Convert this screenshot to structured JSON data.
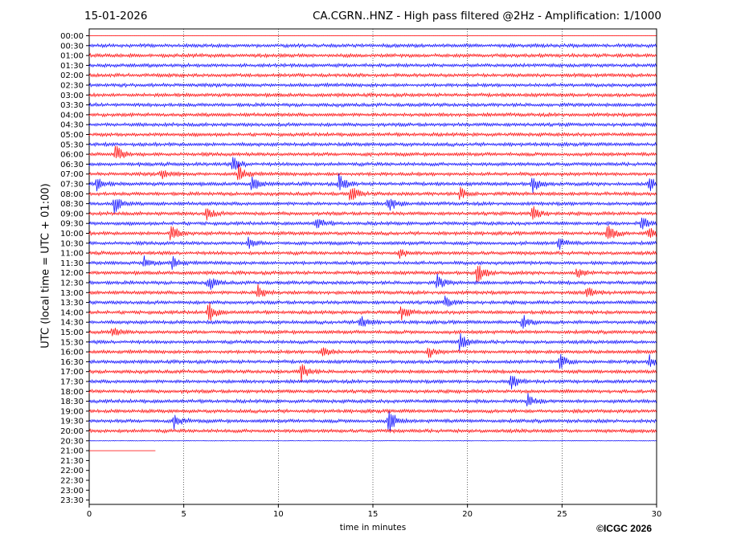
{
  "header": {
    "date": "15-01-2026",
    "title": "CA.CGRN..HNZ - High pass filtered @2Hz - Amplification: 1/1000"
  },
  "credit": "©ICGC 2026",
  "chart_data": {
    "type": "line",
    "title": "CA.CGRN..HNZ - High pass filtered @2Hz - Amplification: 1/1000",
    "xlabel": "time in minutes",
    "ylabel": "UTC (local time = UTC + 01:00)",
    "xlim": [
      0,
      30
    ],
    "xticks": [
      "0",
      "5",
      "10",
      "15",
      "20",
      "25",
      "30"
    ],
    "x_grid": "dotted vertical lines at 5, 10, 15, 20, 25",
    "rows": [
      "00:00",
      "00:30",
      "01:00",
      "01:30",
      "02:00",
      "02:30",
      "03:00",
      "03:30",
      "04:00",
      "04:30",
      "05:00",
      "05:30",
      "06:00",
      "06:30",
      "07:00",
      "07:30",
      "08:00",
      "08:30",
      "09:00",
      "09:30",
      "10:00",
      "10:30",
      "11:00",
      "11:30",
      "12:00",
      "12:30",
      "13:00",
      "13:30",
      "14:00",
      "14:30",
      "15:00",
      "15:30",
      "16:00",
      "16:30",
      "17:00",
      "17:30",
      "18:00",
      "18:30",
      "19:00",
      "19:30",
      "20:00",
      "20:30",
      "21:00",
      "21:30",
      "22:00",
      "22:30",
      "23:00",
      "23:30"
    ],
    "trace_colors": [
      "#ff0000",
      "#0000ff"
    ],
    "color_pattern": "alternating per row, starting red at 00:00",
    "data_extent": "traces complete from 00:00 to 20:30; the 21:00 row runs from 0 to about 3.5 minutes",
    "last_row_minutes": 3.5,
    "seismic_events": [
      {
        "row": "06:00",
        "minute": 1.4,
        "amplitude": 0.7
      },
      {
        "row": "06:30",
        "minute": 7.6,
        "amplitude": 0.6
      },
      {
        "row": "07:00",
        "minute": 3.8,
        "amplitude": 0.4
      },
      {
        "row": "07:00",
        "minute": 7.9,
        "amplitude": 0.7
      },
      {
        "row": "07:30",
        "minute": 0.4,
        "amplitude": 0.5
      },
      {
        "row": "07:30",
        "minute": 8.6,
        "amplitude": 0.6
      },
      {
        "row": "07:30",
        "minute": 13.2,
        "amplitude": 0.8
      },
      {
        "row": "07:30",
        "minute": 23.4,
        "amplitude": 0.7
      },
      {
        "row": "07:30",
        "minute": 29.6,
        "amplitude": 0.6
      },
      {
        "row": "08:00",
        "minute": 13.8,
        "amplitude": 0.7
      },
      {
        "row": "08:00",
        "minute": 19.6,
        "amplitude": 0.5
      },
      {
        "row": "08:30",
        "minute": 1.3,
        "amplitude": 0.8
      },
      {
        "row": "08:30",
        "minute": 15.8,
        "amplitude": 0.7
      },
      {
        "row": "09:00",
        "minute": 6.2,
        "amplitude": 0.5
      },
      {
        "row": "09:00",
        "minute": 23.4,
        "amplitude": 0.8
      },
      {
        "row": "09:30",
        "minute": 12.0,
        "amplitude": 0.5
      },
      {
        "row": "09:30",
        "minute": 29.2,
        "amplitude": 0.5
      },
      {
        "row": "10:00",
        "minute": 4.3,
        "amplitude": 0.7
      },
      {
        "row": "10:00",
        "minute": 27.4,
        "amplitude": 0.8
      },
      {
        "row": "10:00",
        "minute": 29.6,
        "amplitude": 0.6
      },
      {
        "row": "10:30",
        "minute": 8.4,
        "amplitude": 0.4
      },
      {
        "row": "10:30",
        "minute": 24.8,
        "amplitude": 0.5
      },
      {
        "row": "11:00",
        "minute": 16.4,
        "amplitude": 0.4
      },
      {
        "row": "11:30",
        "minute": 2.9,
        "amplitude": 0.6
      },
      {
        "row": "11:30",
        "minute": 4.4,
        "amplitude": 0.5
      },
      {
        "row": "12:00",
        "minute": 20.5,
        "amplitude": 0.9
      },
      {
        "row": "12:00",
        "minute": 25.8,
        "amplitude": 0.4
      },
      {
        "row": "12:30",
        "minute": 6.3,
        "amplitude": 0.6
      },
      {
        "row": "12:30",
        "minute": 18.4,
        "amplitude": 0.6
      },
      {
        "row": "13:00",
        "minute": 8.9,
        "amplitude": 0.7
      },
      {
        "row": "13:00",
        "minute": 26.3,
        "amplitude": 0.5
      },
      {
        "row": "13:30",
        "minute": 18.8,
        "amplitude": 0.5
      },
      {
        "row": "14:00",
        "minute": 6.3,
        "amplitude": 0.8
      },
      {
        "row": "14:00",
        "minute": 16.5,
        "amplitude": 0.6
      },
      {
        "row": "14:30",
        "minute": 14.3,
        "amplitude": 0.7
      },
      {
        "row": "14:30",
        "minute": 22.9,
        "amplitude": 0.6
      },
      {
        "row": "15:00",
        "minute": 1.2,
        "amplitude": 0.4
      },
      {
        "row": "15:30",
        "minute": 19.6,
        "amplitude": 0.7
      },
      {
        "row": "16:00",
        "minute": 12.3,
        "amplitude": 0.6
      },
      {
        "row": "16:00",
        "minute": 17.9,
        "amplitude": 0.5
      },
      {
        "row": "16:30",
        "minute": 24.9,
        "amplitude": 0.6
      },
      {
        "row": "16:30",
        "minute": 29.6,
        "amplitude": 0.5
      },
      {
        "row": "17:00",
        "minute": 11.2,
        "amplitude": 0.7
      },
      {
        "row": "17:30",
        "minute": 22.3,
        "amplitude": 0.6
      },
      {
        "row": "18:30",
        "minute": 23.2,
        "amplitude": 0.5
      },
      {
        "row": "19:30",
        "minute": 4.5,
        "amplitude": 0.6
      },
      {
        "row": "19:30",
        "minute": 15.8,
        "amplitude": 1.0
      }
    ]
  }
}
